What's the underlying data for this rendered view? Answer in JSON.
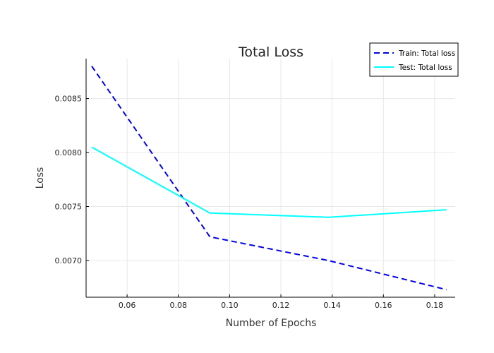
{
  "chart_data": {
    "type": "line",
    "title": "Total Loss",
    "xlabel": "Number of Epochs",
    "ylabel": "Loss",
    "xlim": [
      0.044,
      0.188
    ],
    "ylim": [
      0.00666,
      0.00887
    ],
    "xticks": [
      0.06,
      0.08,
      0.1,
      0.12,
      0.14,
      0.16,
      0.18
    ],
    "xtick_labels": [
      "0.06",
      "0.08",
      "0.10",
      "0.12",
      "0.14",
      "0.16",
      "0.18"
    ],
    "yticks": [
      0.007,
      0.0075,
      0.008,
      0.0085
    ],
    "ytick_labels": [
      "0.0070",
      "0.0075",
      "0.0080",
      "0.0085"
    ],
    "grid": true,
    "legend_position": "top-right",
    "series": [
      {
        "name": "Train: Total loss",
        "color": "#0000ee",
        "dash": "dashed",
        "x": [
          0.0462,
          0.0923,
          0.1385,
          0.1846
        ],
        "y": [
          0.0088,
          0.00722,
          0.007,
          0.00673
        ]
      },
      {
        "name": "Test: Total loss",
        "color": "#00ffff",
        "dash": "solid",
        "x": [
          0.0462,
          0.0923,
          0.1385,
          0.1846
        ],
        "y": [
          0.00805,
          0.00744,
          0.0074,
          0.00747
        ]
      }
    ]
  }
}
